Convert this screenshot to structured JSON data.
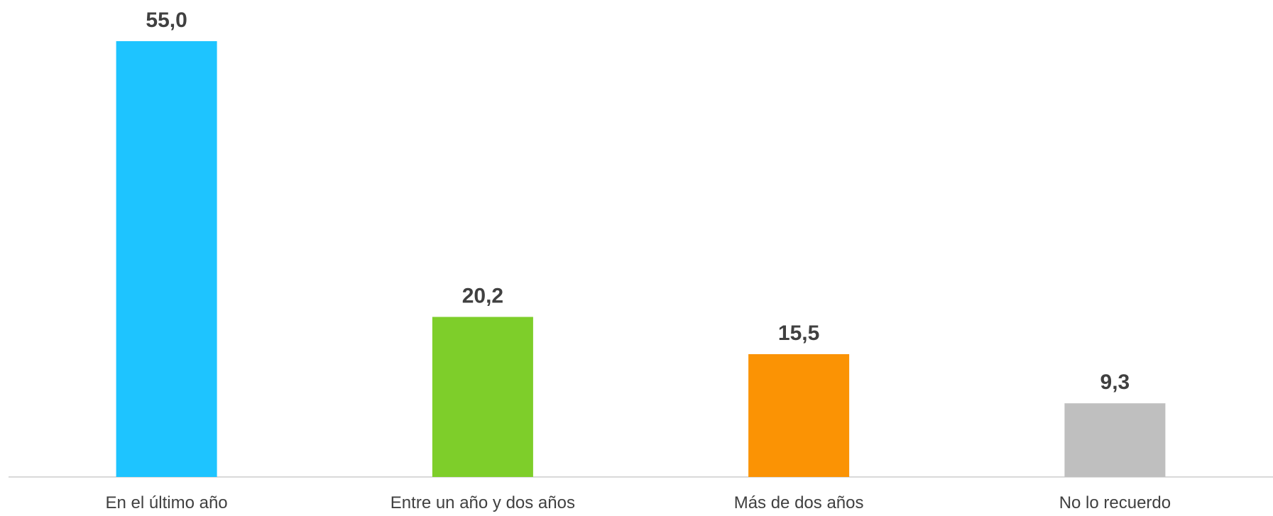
{
  "chart_data": {
    "type": "bar",
    "title": "",
    "xlabel": "",
    "ylabel": "",
    "categories": [
      "En el último año",
      "Entre un año y dos años",
      "Más de dos años",
      "No lo recuerdo"
    ],
    "values": [
      55.0,
      20.2,
      15.5,
      9.3
    ],
    "value_labels": [
      "55,0",
      "20,2",
      "15,5",
      "9,3"
    ],
    "colors": [
      "#1EC4FF",
      "#7ECE2A",
      "#FB9304",
      "#BFBFBF"
    ],
    "axis_color": "#D9D9D9",
    "ylim": [
      0,
      55
    ],
    "grid": false,
    "legend": "none"
  }
}
